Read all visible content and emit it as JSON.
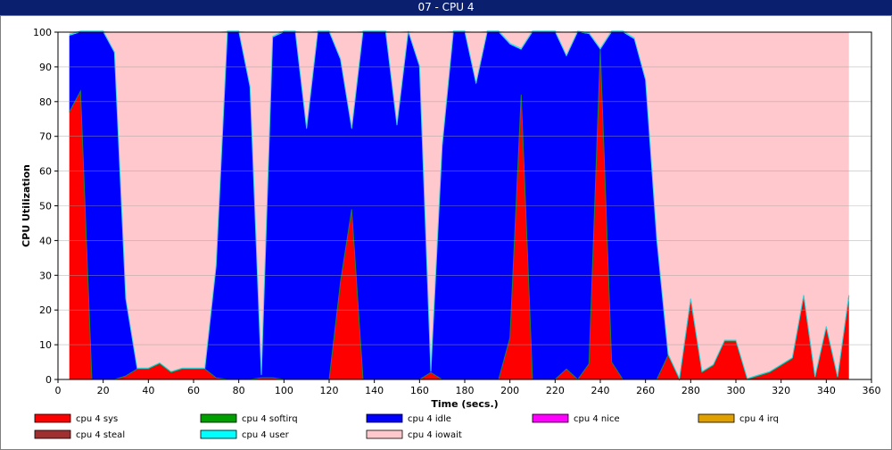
{
  "window": {
    "title": "07 - CPU 4"
  },
  "chart_data": {
    "type": "area",
    "stacked": true,
    "title": "",
    "xlabel": "Time (secs.)",
    "ylabel": "CPU Utilization",
    "xlim": [
      0,
      360
    ],
    "ylim": [
      0,
      100
    ],
    "x_ticks": [
      0,
      20,
      40,
      60,
      80,
      100,
      120,
      140,
      160,
      180,
      200,
      220,
      240,
      260,
      280,
      300,
      320,
      340,
      360
    ],
    "y_ticks": [
      0,
      10,
      20,
      30,
      40,
      50,
      60,
      70,
      80,
      90,
      100
    ],
    "grid": true,
    "legend_position": "bottom",
    "x": [
      5,
      10,
      15,
      20,
      25,
      30,
      35,
      40,
      45,
      50,
      55,
      60,
      65,
      70,
      75,
      80,
      85,
      90,
      95,
      100,
      105,
      110,
      115,
      120,
      125,
      130,
      135,
      140,
      145,
      150,
      155,
      160,
      165,
      170,
      175,
      180,
      185,
      190,
      195,
      200,
      205,
      210,
      215,
      220,
      225,
      230,
      235,
      240,
      245,
      250,
      255,
      260,
      265,
      270,
      275,
      280,
      285,
      290,
      295,
      300,
      305,
      310,
      315,
      320,
      325,
      330,
      335,
      340,
      345,
      350
    ],
    "series": [
      {
        "name": "cpu 4 sys",
        "color": "#ff0000",
        "values": [
          77,
          83,
          0,
          0,
          0,
          1,
          3,
          3,
          4.5,
          2,
          3,
          3,
          3,
          0.5,
          0,
          0,
          0,
          0.5,
          0.5,
          0,
          0,
          0,
          0,
          0,
          28,
          49,
          0,
          0,
          0,
          0,
          0,
          0,
          2,
          0,
          0,
          0,
          0,
          0,
          0,
          12,
          82,
          0,
          0,
          0,
          3,
          0,
          4.5,
          95,
          5,
          0,
          0,
          0,
          0,
          7,
          0,
          23,
          2,
          4,
          11,
          11,
          0,
          1,
          2,
          4,
          6,
          24,
          0.5,
          15,
          0.5,
          24
        ]
      },
      {
        "name": "cpu 4 softirq",
        "color": "#00a000",
        "values": [
          0,
          0,
          0,
          0,
          0,
          0,
          0,
          0,
          0,
          0,
          0,
          0,
          0,
          0,
          0,
          0,
          0,
          0,
          0,
          0,
          0,
          0,
          0,
          0,
          0,
          0,
          0,
          0,
          0,
          0,
          0,
          0,
          0,
          0,
          0,
          0,
          0,
          0,
          0,
          0,
          0,
          0,
          0,
          0,
          0,
          0,
          0,
          0,
          0,
          0,
          0,
          0,
          0,
          0,
          0,
          0,
          0,
          0,
          0,
          0,
          0,
          0,
          0,
          0,
          0,
          0,
          0,
          0,
          0,
          0
        ]
      },
      {
        "name": "cpu 4 idle",
        "color": "#0000ff",
        "values": [
          22,
          17,
          100,
          100,
          94,
          22,
          0,
          0,
          0,
          0,
          0,
          0,
          0,
          32,
          100,
          100,
          84,
          0.5,
          98,
          100,
          100,
          72,
          100,
          100,
          64,
          23,
          100,
          100,
          100,
          73,
          100,
          90,
          0,
          67,
          100,
          100,
          85,
          100,
          100,
          84.5,
          13,
          100,
          100,
          100,
          90,
          100,
          95,
          0,
          95,
          100,
          98,
          86,
          40,
          0,
          0,
          0,
          0,
          0,
          0,
          0,
          0,
          0,
          0,
          0,
          0,
          0,
          0,
          0,
          0,
          0
        ]
      },
      {
        "name": "cpu 4 nice",
        "color": "#ff00ff",
        "values": [
          0,
          0,
          0,
          0,
          0,
          0,
          0,
          0,
          0,
          0,
          0,
          0,
          0,
          0,
          0,
          0,
          0,
          0,
          0,
          0,
          0,
          0,
          0,
          0,
          0,
          0,
          0,
          0,
          0,
          0,
          0,
          0,
          0,
          0,
          0,
          0,
          0,
          0,
          0,
          0,
          0,
          0,
          0,
          0,
          0,
          0,
          0,
          0,
          0,
          0,
          0,
          0,
          0,
          0,
          0,
          0,
          0,
          0,
          0,
          0,
          0,
          0,
          0,
          0,
          0,
          0,
          0,
          0,
          0,
          0
        ]
      },
      {
        "name": "cpu 4 irq",
        "color": "#e0a000",
        "values": [
          0,
          0,
          0,
          0,
          0,
          0,
          0,
          0,
          0,
          0,
          0,
          0,
          0,
          0,
          0,
          0,
          0,
          0,
          0,
          0,
          0,
          0,
          0,
          0,
          0,
          0,
          0,
          0,
          0,
          0,
          0,
          0,
          0,
          0,
          0,
          0,
          0,
          0,
          0,
          0,
          0,
          0,
          0,
          0,
          0,
          0,
          0,
          0,
          0,
          0,
          0,
          0,
          0,
          0,
          0,
          0,
          0,
          0,
          0,
          0,
          0,
          0,
          0,
          0,
          0,
          0,
          0,
          0,
          0,
          0
        ]
      },
      {
        "name": "cpu 4 steal",
        "color": "#a03030",
        "values": [
          0,
          0,
          0,
          0,
          0,
          0,
          0,
          0,
          0,
          0,
          0,
          0,
          0,
          0,
          0,
          0,
          0,
          0,
          0,
          0,
          0,
          0,
          0,
          0,
          0,
          0,
          0,
          0,
          0,
          0,
          0,
          0,
          0,
          0,
          0,
          0,
          0,
          0,
          0,
          0,
          0,
          0,
          0,
          0,
          0,
          0,
          0,
          0,
          0,
          0,
          0,
          0,
          0,
          0,
          0,
          0,
          0,
          0,
          0,
          0,
          0,
          0,
          0,
          0,
          0,
          0,
          0,
          0,
          0,
          0
        ]
      },
      {
        "name": "cpu 4 user",
        "color": "#00ffff",
        "values": [
          0.3,
          0.3,
          0.3,
          0.3,
          0.3,
          0.3,
          0.3,
          0.3,
          0.3,
          0.3,
          0.3,
          0.3,
          0.3,
          0.3,
          0.3,
          0.3,
          0.3,
          0.3,
          0.3,
          0.3,
          0.3,
          0.3,
          0.3,
          0.3,
          0.3,
          0.3,
          0.3,
          0.3,
          0.3,
          0.3,
          0.3,
          0.3,
          0.3,
          0.3,
          0.3,
          0.3,
          0.3,
          0.3,
          0.3,
          0.3,
          0.3,
          0.3,
          0.3,
          0.3,
          0.3,
          0.3,
          0.3,
          0.3,
          0.3,
          0.3,
          0.3,
          0.3,
          0.3,
          0.3,
          0.3,
          0.3,
          0.3,
          0.3,
          0.3,
          0.3,
          0.3,
          0.3,
          0.3,
          0.3,
          0.3,
          0.3,
          0.3,
          0.3,
          0.3,
          0.3
        ]
      },
      {
        "name": "cpu 4 iowait",
        "color": "#ffc8cc",
        "values": [
          0.7,
          0,
          0,
          0,
          5.7,
          76.7,
          96.7,
          96.7,
          95.2,
          97.7,
          96.7,
          96.7,
          96.7,
          67.2,
          0,
          0,
          15.7,
          98.7,
          1.2,
          0,
          0,
          27.7,
          0,
          0,
          7.7,
          27.7,
          0,
          0,
          0,
          26.7,
          0,
          9.7,
          97.7,
          32.7,
          0,
          0,
          14.7,
          0,
          0,
          3.2,
          4.7,
          0,
          0,
          0,
          6.7,
          0,
          0.2,
          4.7,
          0,
          0,
          1.7,
          13.7,
          59.7,
          92.7,
          99.7,
          76.7,
          97.7,
          95.7,
          88.7,
          88.7,
          99.7,
          98.7,
          97.7,
          95.7,
          93.7,
          75.7,
          99.2,
          84.7,
          99.2,
          75.7
        ]
      }
    ]
  }
}
